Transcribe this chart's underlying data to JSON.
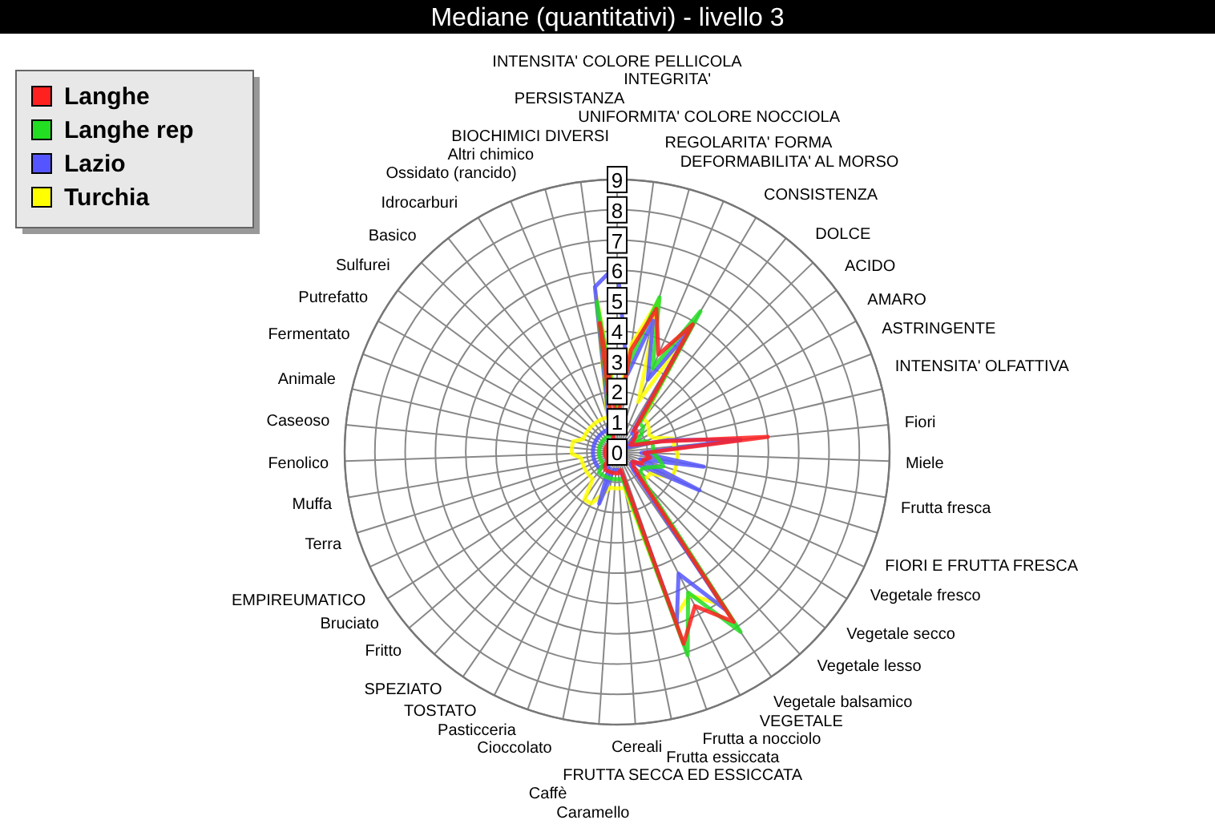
{
  "chart_data": {
    "type": "radar",
    "title": "Mediane (quantitativi) - livello 3",
    "categories": [
      "INTENSITA' COLORE PELLICOLA",
      "INTEGRITA'",
      "UNIFORMITA' COLORE NOCCIOLA",
      "REGOLARITA' FORMA",
      "DEFORMABILITA' AL MORSO",
      "CONSISTENZA",
      "DOLCE",
      "ACIDO",
      "AMARO",
      "ASTRINGENTE",
      "INTENSITA' OLFATTIVA",
      "Fiori",
      "Miele",
      "Frutta fresca",
      "FIORI E FRUTTA FRESCA",
      "Vegetale fresco",
      "Vegetale secco",
      "Vegetale lesso",
      "Vegetale balsamico",
      "VEGETALE",
      "Frutta a nocciolo",
      "Frutta essiccata",
      "FRUTTA SECCA ED ESSICCATA",
      "Cereali",
      "Caramello",
      "Caffè",
      "Cioccolato",
      "Pasticceria",
      "TOSTATO",
      "SPEZIATO",
      "Fritto",
      "Bruciato",
      "EMPIREUMATICO",
      "Terra",
      "Muffa",
      "Fenolico",
      "Caseoso",
      "Animale",
      "Fermentato",
      "Putrefatto",
      "Sulfurei",
      "Basico",
      "Idrocarburi",
      "Ossidato (rancido)",
      "Altri chimico",
      "BIOCHIMICI DIVERSI",
      "PERSISTANZA"
    ],
    "series": [
      {
        "name": "Langhe",
        "color": "#ff2020",
        "values": [
          1.0,
          3.4,
          4.9,
          3.5,
          4.9,
          0.9,
          0.9,
          0.7,
          0.5,
          0.7,
          1.5,
          5.0,
          0.9,
          1.1,
          0.9,
          0.9,
          0.6,
          0.7,
          1.1,
          6.8,
          5.7,
          6.7,
          0.6,
          0.7,
          0.7,
          0.7,
          0.7,
          0.7,
          0.7,
          0.6,
          0.4,
          0.4,
          0.4,
          0.4,
          0.4,
          0.4,
          0.4,
          0.4,
          0.4,
          0.4,
          0.4,
          0.4,
          0.4,
          0.4,
          0.4,
          0.4,
          4.3
        ]
      },
      {
        "name": "Langhe rep",
        "color": "#22dd22",
        "values": [
          1.3,
          3.0,
          5.3,
          3.0,
          5.4,
          1.2,
          1.2,
          1.0,
          0.7,
          1.0,
          1.2,
          1.2,
          1.2,
          1.4,
          1.6,
          1.2,
          1.0,
          1.0,
          1.4,
          7.2,
          5.2,
          7.1,
          0.9,
          0.9,
          0.9,
          0.9,
          0.9,
          0.9,
          0.9,
          0.9,
          0.6,
          0.6,
          0.6,
          0.6,
          0.6,
          0.6,
          0.6,
          0.6,
          0.6,
          0.6,
          0.6,
          0.6,
          0.6,
          0.6,
          0.6,
          0.6,
          5.0
        ]
      },
      {
        "name": "Lazio",
        "color": "#5555ff",
        "values": [
          6.2,
          2.6,
          4.5,
          2.6,
          4.6,
          0.8,
          0.8,
          0.6,
          0.3,
          0.6,
          1.7,
          4.1,
          0.8,
          2.9,
          0.8,
          3.0,
          0.6,
          0.6,
          0.8,
          6.3,
          4.5,
          6.0,
          0.7,
          0.6,
          0.6,
          0.6,
          1.8,
          0.6,
          0.6,
          0.6,
          0.8,
          0.8,
          0.8,
          0.8,
          0.8,
          0.8,
          0.8,
          0.8,
          0.8,
          0.8,
          0.8,
          0.8,
          0.8,
          0.8,
          0.8,
          1.0,
          5.5
        ]
      },
      {
        "name": "Turchia",
        "color": "#ffff00",
        "values": [
          1.5,
          3.6,
          5.2,
          1.8,
          4.4,
          1.4,
          1.4,
          1.3,
          1.2,
          1.3,
          1.9,
          1.9,
          2.0,
          2.0,
          2.0,
          2.0,
          1.3,
          1.3,
          1.2,
          6.1,
          5.3,
          5.8,
          1.2,
          1.2,
          1.2,
          1.2,
          1.5,
          1.9,
          1.9,
          1.2,
          1.2,
          1.2,
          1.2,
          1.2,
          1.2,
          1.5,
          1.5,
          1.5,
          1.2,
          1.2,
          1.2,
          1.2,
          1.2,
          1.2,
          1.2,
          1.2,
          5.2
        ]
      }
    ],
    "ylim": [
      0,
      9
    ],
    "yticks": [
      0,
      1,
      2,
      3,
      4,
      5,
      6,
      7,
      8,
      9
    ],
    "grid": true,
    "legend": "top left",
    "marker": "none",
    "line_style": "solid"
  }
}
